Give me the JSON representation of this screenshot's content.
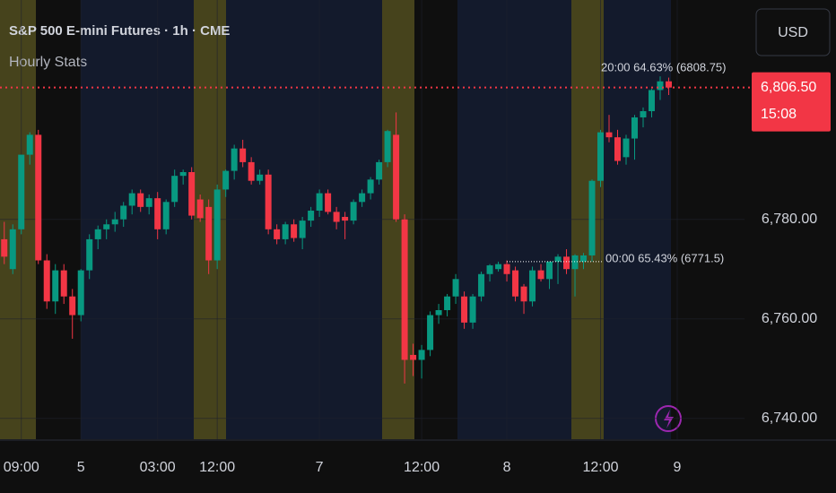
{
  "chart_data": {
    "type": "candlestick",
    "title": "S&P 500 E-mini Futures · 1h · CME",
    "subtitle": "Hourly Stats",
    "currency": "USD",
    "up_color": "#089981",
    "down_color": "#f23645",
    "open": [
      6776,
      6770,
      6778,
      6793,
      6797,
      6771.75,
      6763.5,
      6769.75,
      6764.5,
      6760.75,
      6769.75,
      6776,
      6778,
      6779,
      6780,
      6782.75,
      6785.25,
      6782.5,
      6784.25,
      6778,
      6783.5,
      6788.75,
      6789.5,
      6784,
      6782.5,
      6771.75,
      6786,
      6789.75,
      6794.25,
      6791.5,
      6787.75,
      6789,
      6778,
      6776,
      6779,
      6776.25,
      6779.75,
      6781.75,
      6785.25,
      6781.5,
      6780.5,
      6779.75,
      6783.5,
      6785.25,
      6788,
      6791.5,
      6797,
      6780,
      6752.75,
      6751.75,
      6753.75,
      6760.75,
      6761.75,
      6764.5,
      6764.5,
      6759.25,
      6764.5,
      6769,
      6770,
      6771,
      6769.75,
      6766.5,
      6763.5,
      6769.75,
      6768,
      6771.5,
      6772.5,
      6770,
      6771.5,
      6772.75,
      6787.75,
      6797.5,
      6796.5,
      6792.5,
      6796.25,
      6800.5,
      6801.75,
      6806,
      6807.75
    ],
    "high": [
      6779.5,
      6779,
      6793,
      6797.5,
      6798,
      6773,
      6771,
      6771,
      6766,
      6770,
      6777,
      6778.75,
      6780,
      6781.5,
      6783.5,
      6786,
      6786,
      6785,
      6785.5,
      6784,
      6790,
      6790,
      6790.5,
      6785,
      6784,
      6787,
      6790,
      6795,
      6796,
      6792.5,
      6790,
      6790,
      6779,
      6779.5,
      6780,
      6780.5,
      6782.5,
      6786,
      6786,
      6782.5,
      6781.5,
      6784,
      6786,
      6788.5,
      6792,
      6798,
      6801.5,
      6781,
      6755,
      6754.75,
      6761.5,
      6763,
      6765,
      6769,
      6765.5,
      6765,
      6769.5,
      6771,
      6771.5,
      6771.75,
      6770.5,
      6767,
      6770.5,
      6771,
      6771.5,
      6773,
      6774,
      6773,
      6773.25,
      6788,
      6798,
      6801,
      6798,
      6797,
      6801,
      6802.5,
      6806.25,
      6808.75,
      6808.5
    ],
    "low": [
      6771,
      6769,
      6777,
      6791,
      6771,
      6762,
      6761,
      6763,
      6756,
      6759.5,
      6768,
      6774,
      6776,
      6777.5,
      6778.5,
      6781,
      6781.5,
      6781,
      6776,
      6777,
      6782.5,
      6787,
      6780,
      6779.5,
      6769,
      6770,
      6784.5,
      6788,
      6790.5,
      6787,
      6787,
      6777,
      6775,
      6775,
      6775.5,
      6774,
      6778.5,
      6780.5,
      6781,
      6778,
      6776,
      6779,
      6782.5,
      6784,
      6787,
      6790.5,
      6779.5,
      6747,
      6748.5,
      6748,
      6752.5,
      6759,
      6760.5,
      6763,
      6758,
      6758,
      6763.5,
      6767.5,
      6769.5,
      6767.5,
      6763.5,
      6761,
      6762.5,
      6767.5,
      6766,
      6767,
      6769,
      6764.5,
      6770,
      6771.5,
      6786.5,
      6795.5,
      6791,
      6791,
      6792,
      6798.5,
      6800.5,
      6804,
      6805
    ],
    "close": [
      6772.5,
      6778,
      6793,
      6797,
      6771.75,
      6763.5,
      6769.75,
      6764.5,
      6760.75,
      6769.75,
      6776,
      6778,
      6779,
      6780,
      6782.75,
      6785.25,
      6782.5,
      6784.25,
      6778,
      6783.5,
      6788.75,
      6789.5,
      6780.75,
      6780.25,
      6771.75,
      6786,
      6789.75,
      6794.25,
      6791.5,
      6787.75,
      6789,
      6778,
      6776,
      6779,
      6776.25,
      6779.75,
      6781.75,
      6785.25,
      6781.5,
      6779.5,
      6779.75,
      6783.5,
      6785.25,
      6788,
      6791.5,
      6797.75,
      6780,
      6751.75,
      6751.75,
      6753.75,
      6760.75,
      6761.75,
      6764.5,
      6768,
      6759.25,
      6764.5,
      6769,
      6770.75,
      6771,
      6769,
      6764.5,
      6763.5,
      6769.75,
      6768,
      6771.5,
      6772.5,
      6770,
      6772.75,
      6772.75,
      6787.75,
      6797.5,
      6796.5,
      6791.75,
      6796.25,
      6800.5,
      6801.75,
      6806,
      6807.75,
      6806.5
    ],
    "xlim": [
      -0.5,
      86.9
    ],
    "xticks": [
      {
        "value": 2,
        "label": "09:00"
      },
      {
        "value": 9,
        "label": "5"
      },
      {
        "value": 18,
        "label": "03:00"
      },
      {
        "value": 25,
        "label": "12:00"
      },
      {
        "value": 37,
        "label": "7"
      },
      {
        "value": 49,
        "label": "12:00"
      },
      {
        "value": 59,
        "label": "8"
      },
      {
        "value": 70,
        "label": "12:00"
      },
      {
        "value": 79,
        "label": "9"
      }
    ],
    "ylim": [
      6735.8,
      6824.1
    ],
    "yticks": [
      {
        "value": 6740,
        "label": "6,740.00"
      },
      {
        "value": 6760,
        "label": "6,760.00"
      },
      {
        "value": 6780,
        "label": "6,780.00"
      }
    ],
    "last_price": {
      "value": 6806.5,
      "label": "6,806.50"
    },
    "countdown": "15:08",
    "annotations": [
      {
        "text": "20:00 64.63% (6808.75)",
        "value": 6808.75
      },
      {
        "text": "00:00 65.43% (6771.5)",
        "value": 6771.5
      }
    ]
  }
}
